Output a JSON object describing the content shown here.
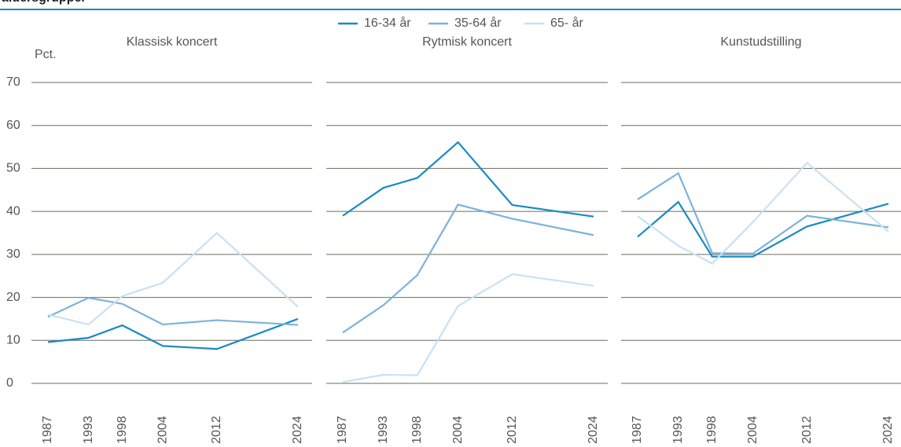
{
  "chart_data": {
    "type": "line",
    "title": "aldersgrupper",
    "y_label": "Pct.",
    "ylim": [
      0,
      70
    ],
    "yticks": [
      0,
      10,
      20,
      30,
      40,
      50,
      60,
      70
    ],
    "xlim": [
      1987,
      2024
    ],
    "x": [
      1987,
      1993,
      1998,
      2004,
      2012,
      2024
    ],
    "series": [
      {
        "name": "16-34 år",
        "color": "#1a8ac4"
      },
      {
        "name": "35-64 år",
        "color": "#7bb3dc"
      },
      {
        "name": "65- år",
        "color": "#c9e1f2"
      }
    ],
    "panels": [
      {
        "title": "Klassisk koncert",
        "values": [
          [
            9.6,
            10.6,
            13.5,
            8.7,
            8.0,
            15.0
          ],
          [
            15.5,
            19.9,
            18.5,
            13.7,
            14.7,
            13.6
          ],
          [
            16.0,
            13.7,
            20.3,
            23.4,
            35.0,
            17.8
          ]
        ]
      },
      {
        "title": "Rytmisk koncert",
        "values": [
          [
            39.0,
            45.5,
            47.8,
            56.1,
            41.5,
            38.8
          ],
          [
            11.8,
            18.2,
            25.2,
            41.6,
            38.3,
            34.5
          ],
          [
            0.3,
            2.0,
            1.9,
            18.0,
            25.4,
            22.7
          ]
        ]
      },
      {
        "title": "Kunstudstilling",
        "values": [
          [
            34.1,
            42.2,
            29.5,
            29.5,
            36.5,
            41.8
          ],
          [
            42.8,
            48.9,
            30.3,
            30.2,
            39.0,
            36.3
          ],
          [
            38.9,
            32.0,
            27.9,
            37.5,
            51.3,
            35.3
          ]
        ]
      }
    ]
  }
}
